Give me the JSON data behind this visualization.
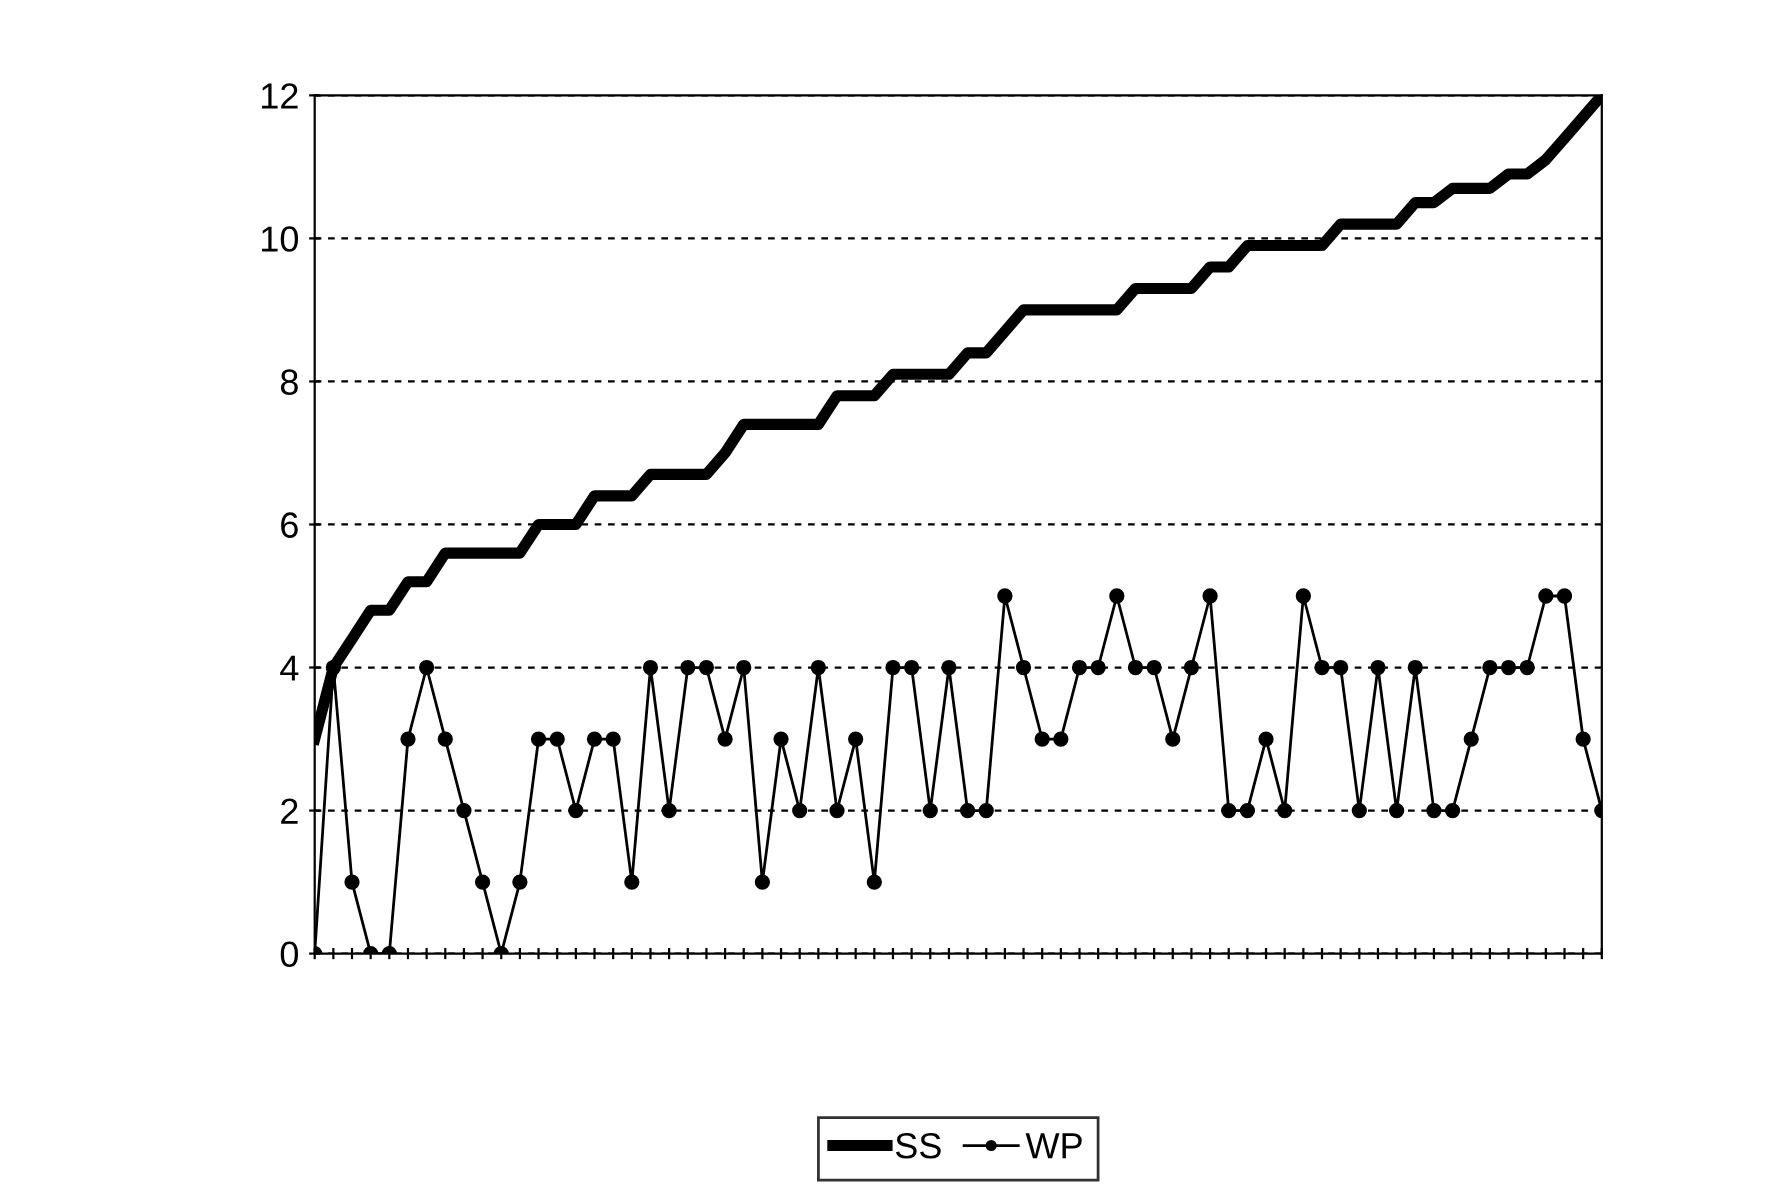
{
  "chart_data": {
    "type": "line",
    "categories": [
      null,
      null,
      null,
      null,
      null,
      null,
      null,
      null,
      null,
      null,
      null,
      null,
      null,
      null,
      null,
      null,
      null,
      null,
      null,
      null,
      null,
      null,
      null,
      null,
      null,
      null,
      null,
      null,
      null,
      null,
      null,
      null,
      null,
      null,
      null,
      null,
      null,
      null,
      null,
      null,
      null,
      null,
      null,
      null,
      null,
      null,
      null,
      null,
      null,
      null,
      null,
      null,
      null,
      null,
      null,
      null,
      null,
      null,
      null,
      null,
      null,
      null,
      null,
      null,
      null,
      null,
      null,
      null,
      null,
      null
    ],
    "series": [
      {
        "name": "SS",
        "color": "#000000",
        "marker": "none",
        "values": [
          3.0,
          4.0,
          4.4,
          4.8,
          4.8,
          5.2,
          5.2,
          5.6,
          5.6,
          5.6,
          5.6,
          5.6,
          6.0,
          6.0,
          6.0,
          6.4,
          6.4,
          6.4,
          6.7,
          6.7,
          6.7,
          6.7,
          7.0,
          7.4,
          7.4,
          7.4,
          7.4,
          7.4,
          7.8,
          7.8,
          7.8,
          8.1,
          8.1,
          8.1,
          8.1,
          8.4,
          8.4,
          8.7,
          9.0,
          9.0,
          9.0,
          9.0,
          9.0,
          9.0,
          9.3,
          9.3,
          9.3,
          9.3,
          9.6,
          9.6,
          9.9,
          9.9,
          9.9,
          9.9,
          9.9,
          10.2,
          10.2,
          10.2,
          10.2,
          10.5,
          10.5,
          10.7,
          10.7,
          10.7,
          10.9,
          10.9,
          11.1,
          11.4,
          11.7,
          12.0
        ]
      },
      {
        "name": "WP",
        "color": "#000000",
        "marker": "circle",
        "values": [
          0,
          4,
          1,
          0,
          0,
          3,
          4,
          3,
          2,
          1,
          0,
          1,
          3,
          3,
          2,
          3,
          3,
          1,
          4,
          2,
          4,
          4,
          3,
          4,
          1,
          3,
          2,
          4,
          2,
          3,
          1,
          4,
          4,
          2,
          4,
          2,
          2,
          5,
          4,
          3,
          3,
          4,
          4,
          5,
          4,
          4,
          3,
          4,
          5,
          2,
          2,
          3,
          2,
          5,
          4,
          4,
          2,
          4,
          2,
          4,
          2,
          2,
          3,
          4,
          4,
          4,
          5,
          5,
          3,
          2
        ]
      }
    ],
    "ylim": [
      0,
      12
    ],
    "yticks": [
      0,
      2,
      4,
      6,
      8,
      10,
      12
    ],
    "grid": "y",
    "legend": "bottom",
    "tick_labels": "y"
  }
}
